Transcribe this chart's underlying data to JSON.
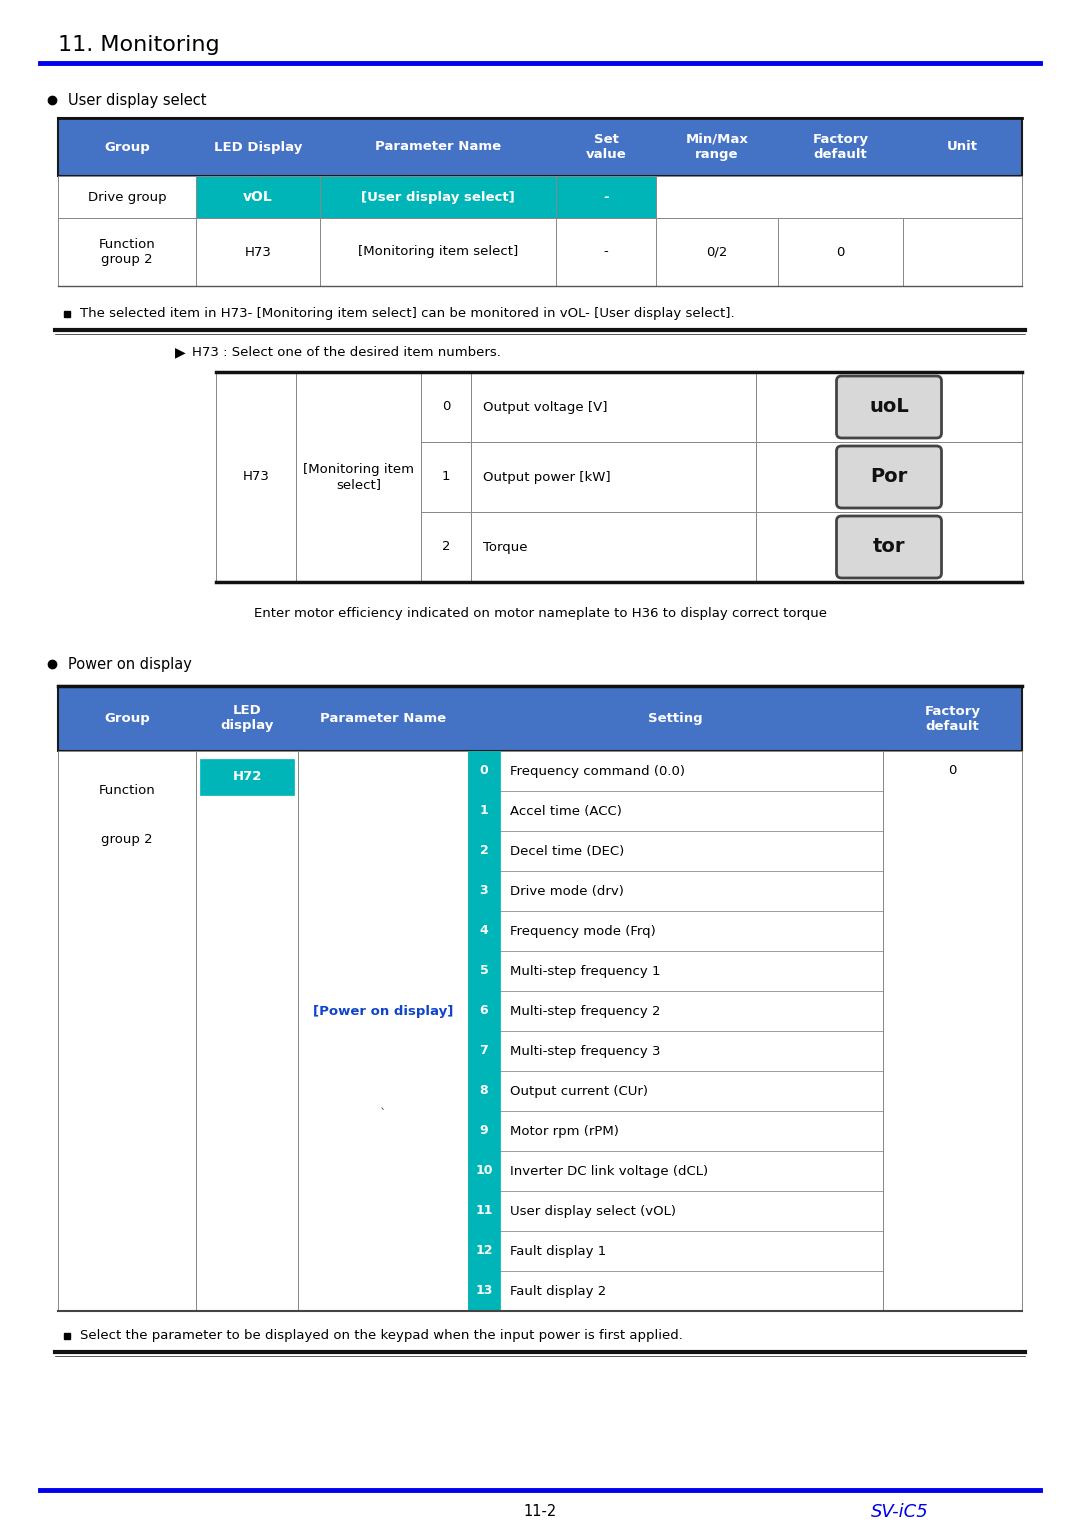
{
  "title": "11. Monitoring",
  "blue": "#0000EE",
  "header_blue": "#4472C4",
  "teal": "#00B5B8",
  "white": "#FFFFFF",
  "black": "#000000",
  "section1_title": "User display select",
  "table1_headers": [
    "Group",
    "LED Display",
    "Parameter Name",
    "Set\nvalue",
    "Min/Max\nrange",
    "Factory\ndefault",
    "Unit"
  ],
  "note1": "The selected item in H73- [Monitoring item select] can be monitored in vOL- [User display select].",
  "sub_note": "H73 : Select one of the desired item numbers.",
  "h73_rows": [
    {
      "num": "0",
      "desc": "Output voltage [V]",
      "lcd": "uoL"
    },
    {
      "num": "1",
      "desc": "Output power [kW]",
      "lcd": "Por"
    },
    {
      "num": "2",
      "desc": "Torque",
      "lcd": "tor"
    }
  ],
  "enter_note": "Enter motor efficiency indicated on motor nameplate to H36 to display correct torque",
  "section2_title": "Power on display",
  "table2_settings": [
    {
      "num": "0",
      "desc": "Frequency command (0.0)"
    },
    {
      "num": "1",
      "desc": "Accel time (ACC)"
    },
    {
      "num": "2",
      "desc": "Decel time (DEC)"
    },
    {
      "num": "3",
      "desc": "Drive mode (drv)"
    },
    {
      "num": "4",
      "desc": "Frequency mode (Frq)"
    },
    {
      "num": "5",
      "desc": "Multi-step frequency 1"
    },
    {
      "num": "6",
      "desc": "Multi-step frequency 2"
    },
    {
      "num": "7",
      "desc": "Multi-step frequency 3"
    },
    {
      "num": "8",
      "desc": "Output current (CUr)"
    },
    {
      "num": "9",
      "desc": "Motor rpm (rPM)"
    },
    {
      "num": "10",
      "desc": "Inverter DC link voltage (dCL)"
    },
    {
      "num": "11",
      "desc": "User display select (vOL)"
    },
    {
      "num": "12",
      "desc": "Fault display 1"
    },
    {
      "num": "13",
      "desc": "Fault display 2"
    }
  ],
  "note2": "Select the parameter to be displayed on the keypad when the input power is first applied.",
  "footer_page": "11-2",
  "footer_model": "SV-iC5"
}
